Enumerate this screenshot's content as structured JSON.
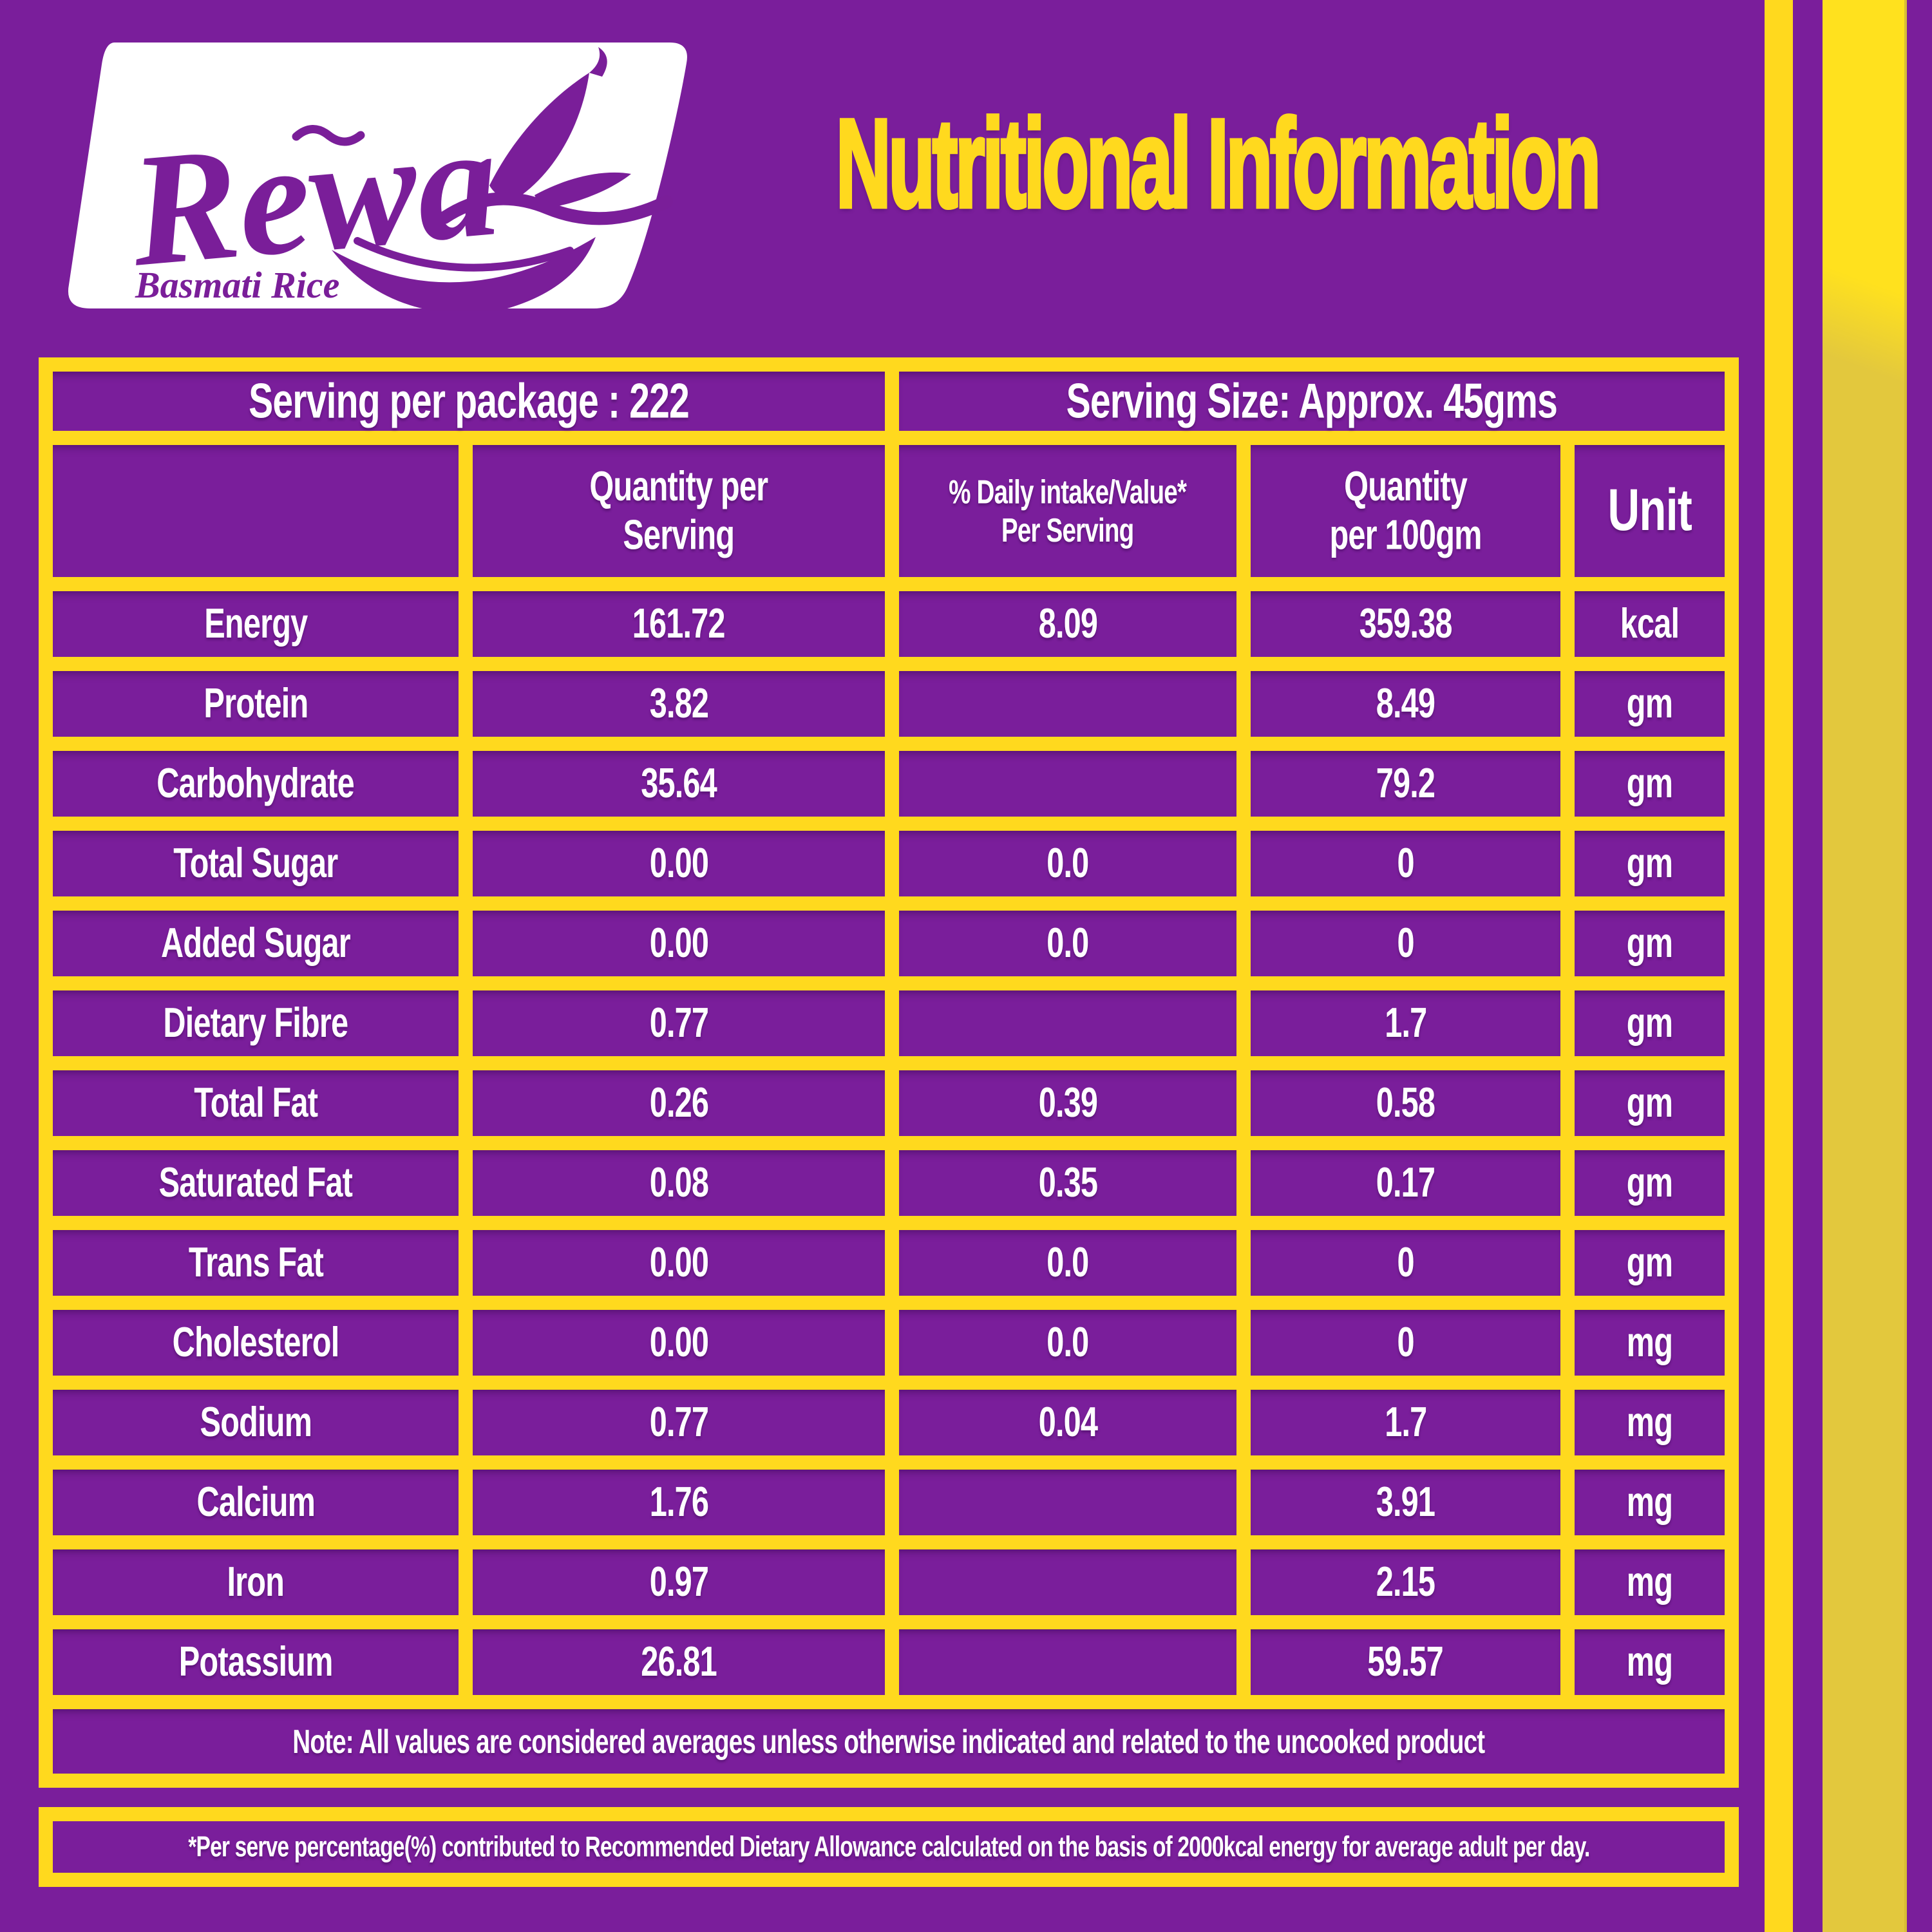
{
  "brand": {
    "name": "Rewa",
    "tagline": "Basmati Rice"
  },
  "title": "Nutritional Information",
  "serving": {
    "per_package": "Serving per package : 222",
    "size": "Serving Size: Approx. 45gms"
  },
  "table": {
    "columns": [
      "",
      "Quantity per\nServing",
      "% Daily intake/Value*\nPer Serving",
      "Quantity\nper 100gm",
      "Unit"
    ],
    "rows": [
      {
        "name": "Energy",
        "qty_serving": "161.72",
        "daily_value": "8.09",
        "qty_100g": "359.38",
        "unit": "kcal"
      },
      {
        "name": "Protein",
        "qty_serving": "3.82",
        "daily_value": "",
        "qty_100g": "8.49",
        "unit": "gm"
      },
      {
        "name": "Carbohydrate",
        "qty_serving": "35.64",
        "daily_value": "",
        "qty_100g": "79.2",
        "unit": "gm"
      },
      {
        "name": "Total Sugar",
        "qty_serving": "0.00",
        "daily_value": "0.0",
        "qty_100g": "0",
        "unit": "gm"
      },
      {
        "name": "Added Sugar",
        "qty_serving": "0.00",
        "daily_value": "0.0",
        "qty_100g": "0",
        "unit": "gm"
      },
      {
        "name": "Dietary Fibre",
        "qty_serving": "0.77",
        "daily_value": "",
        "qty_100g": "1.7",
        "unit": "gm"
      },
      {
        "name": "Total Fat",
        "qty_serving": "0.26",
        "daily_value": "0.39",
        "qty_100g": "0.58",
        "unit": "gm"
      },
      {
        "name": "Saturated Fat",
        "qty_serving": "0.08",
        "daily_value": "0.35",
        "qty_100g": "0.17",
        "unit": "gm"
      },
      {
        "name": "Trans Fat",
        "qty_serving": "0.00",
        "daily_value": "0.0",
        "qty_100g": "0",
        "unit": "gm"
      },
      {
        "name": "Cholesterol",
        "qty_serving": "0.00",
        "daily_value": "0.0",
        "qty_100g": "0",
        "unit": "mg"
      },
      {
        "name": "Sodium",
        "qty_serving": "0.77",
        "daily_value": "0.04",
        "qty_100g": "1.7",
        "unit": "mg"
      },
      {
        "name": "Calcium",
        "qty_serving": "1.76",
        "daily_value": "",
        "qty_100g": "3.91",
        "unit": "mg"
      },
      {
        "name": "Iron",
        "qty_serving": "0.97",
        "daily_value": "",
        "qty_100g": "2.15",
        "unit": "mg"
      },
      {
        "name": "Potassium",
        "qty_serving": "26.81",
        "daily_value": "",
        "qty_100g": "59.57",
        "unit": "mg"
      }
    ],
    "note": "Note: All values are considered averages unless otherwise indicated and related to the uncooked product"
  },
  "footnote": "*Per serve percentage(%) contributed to Recommended Dietary Allowance calculated on the basis of 2000kcal energy for average adult per day.",
  "colors": {
    "background_purple": "#7A1E9B",
    "accent_yellow": "#FFD91E",
    "panel_white": "#FFFFFF",
    "stripe_yellow_bright": "#FFE11E",
    "stripe_yellow_muted": "#E3C83D",
    "text_white": "#FFFFFF",
    "logo_purple": "#7A1E99"
  }
}
